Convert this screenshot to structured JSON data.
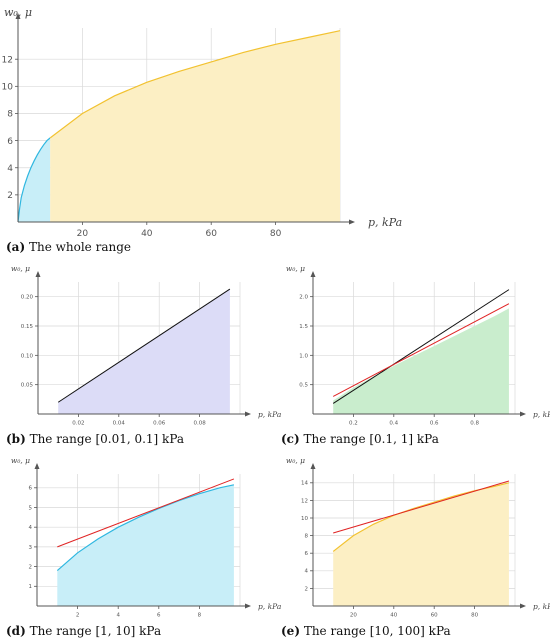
{
  "colors": {
    "cyan_fill": "#c8eef8",
    "cyan_line": "#2fb7e0",
    "yellow_fill": "#fcefc4",
    "yellow_line": "#f2c230",
    "blue_fill": "#dcdcf7",
    "green_fill": "#c9edcd",
    "black_line": "#111111",
    "red_line": "#e02424",
    "grid": "#d9d9d9",
    "axis": "#555555"
  },
  "chart_data": [
    {
      "type": "area",
      "caption_letter": "(a)",
      "caption_text": "The whole range",
      "xlabel": "p, kPa",
      "ylabel": "w₀, μ",
      "xlim": [
        0,
        100
      ],
      "ylim": [
        0,
        14.3
      ],
      "xticks": [
        20,
        40,
        60,
        80
      ],
      "yticks": [
        2,
        4,
        6,
        8,
        10,
        12
      ],
      "grid": true,
      "series": [
        {
          "fill": "cyan",
          "x": [
            0.01,
            0.1,
            0.5,
            1,
            2,
            3,
            4,
            5,
            6,
            7,
            8,
            9,
            10
          ],
          "y": [
            0.02,
            0.2,
            1.0,
            1.8,
            2.7,
            3.4,
            4.0,
            4.5,
            4.95,
            5.35,
            5.7,
            6.0,
            6.2
          ]
        },
        {
          "fill": "yellow",
          "x": [
            10,
            20,
            30,
            40,
            50,
            60,
            70,
            80,
            90,
            100
          ],
          "y": [
            6.2,
            8.0,
            9.3,
            10.3,
            11.1,
            11.8,
            12.5,
            13.1,
            13.6,
            14.1
          ]
        }
      ]
    },
    {
      "type": "area",
      "caption_letter": "(b)",
      "caption_text": "The range [0.01, 0.1] kPa",
      "xlabel": "p, kPa",
      "ylabel": "w₀, μ",
      "xlim": [
        0,
        0.1
      ],
      "ylim": [
        0,
        0.225
      ],
      "xticks": [
        0.02,
        0.04,
        0.06,
        0.08
      ],
      "yticks": [
        0.05,
        0.1,
        0.15,
        0.2
      ],
      "tick_labels": {
        "x": [
          "0.02",
          "0.04",
          "0.06",
          "0.08"
        ],
        "y": [
          "0.05",
          "0.10",
          "0.15",
          "0.20"
        ]
      },
      "grid": true,
      "series": [
        {
          "fill": "blue",
          "x": [
            0.01,
            0.095
          ],
          "y": [
            0.02,
            0.213
          ]
        }
      ],
      "lines": [
        {
          "color": "black",
          "x": [
            0.01,
            0.095
          ],
          "y": [
            0.02,
            0.213
          ]
        }
      ]
    },
    {
      "type": "area",
      "caption_letter": "(c)",
      "caption_text": "The range [0.1, 1] kPa",
      "xlabel": "p, kPa",
      "ylabel": "w₀, μ",
      "xlim": [
        0,
        1
      ],
      "ylim": [
        0,
        2.25
      ],
      "xticks": [
        0.2,
        0.4,
        0.6,
        0.8
      ],
      "yticks": [
        0.5,
        1.0,
        1.5,
        2.0
      ],
      "tick_labels": {
        "x": [
          "0.2",
          "0.4",
          "0.6",
          "0.8"
        ],
        "y": [
          "0.5",
          "1.0",
          "1.5",
          "2.0"
        ]
      },
      "grid": true,
      "series": [
        {
          "fill": "green",
          "x": [
            0.1,
            0.2,
            0.3,
            0.4,
            0.5,
            0.6,
            0.7,
            0.8,
            0.9,
            0.97
          ],
          "y": [
            0.23,
            0.45,
            0.64,
            0.82,
            0.99,
            1.16,
            1.33,
            1.5,
            1.67,
            1.8
          ]
        }
      ],
      "lines": [
        {
          "color": "black",
          "x": [
            0.1,
            0.97
          ],
          "y": [
            0.18,
            2.12
          ]
        },
        {
          "color": "red",
          "x": [
            0.1,
            0.97
          ],
          "y": [
            0.3,
            1.88
          ]
        }
      ]
    },
    {
      "type": "area",
      "caption_letter": "(d)",
      "caption_text": "The range [1, 10] kPa",
      "xlabel": "p, kPa",
      "ylabel": "w₀, μ",
      "xlim": [
        0,
        10
      ],
      "ylim": [
        0,
        6.7
      ],
      "xticks": [
        2,
        4,
        6,
        8
      ],
      "yticks": [
        1,
        2,
        3,
        4,
        5,
        6
      ],
      "grid": true,
      "series": [
        {
          "fill": "cyan",
          "x": [
            1,
            2,
            3,
            4,
            5,
            6,
            7,
            8,
            9,
            9.7
          ],
          "y": [
            1.8,
            2.7,
            3.4,
            4.0,
            4.5,
            4.95,
            5.35,
            5.7,
            6.0,
            6.15
          ]
        }
      ],
      "lines": [
        {
          "color": "red",
          "x": [
            1,
            9.7
          ],
          "y": [
            3.0,
            6.45
          ]
        }
      ]
    },
    {
      "type": "area",
      "caption_letter": "(e)",
      "caption_text": "The range [10, 100] kPa",
      "xlabel": "p, kPa",
      "ylabel": "w₀, μ",
      "xlim": [
        0,
        100
      ],
      "ylim": [
        0,
        15
      ],
      "xticks": [
        20,
        40,
        60,
        80
      ],
      "yticks": [
        2,
        4,
        6,
        8,
        10,
        12,
        14
      ],
      "grid": true,
      "series": [
        {
          "fill": "yellow",
          "x": [
            10,
            20,
            30,
            40,
            50,
            60,
            70,
            80,
            90,
            97
          ],
          "y": [
            6.2,
            8.0,
            9.3,
            10.3,
            11.1,
            11.8,
            12.5,
            13.1,
            13.6,
            14.0
          ]
        }
      ],
      "lines": [
        {
          "color": "red",
          "x": [
            10,
            97
          ],
          "y": [
            8.3,
            14.2
          ]
        }
      ]
    }
  ]
}
